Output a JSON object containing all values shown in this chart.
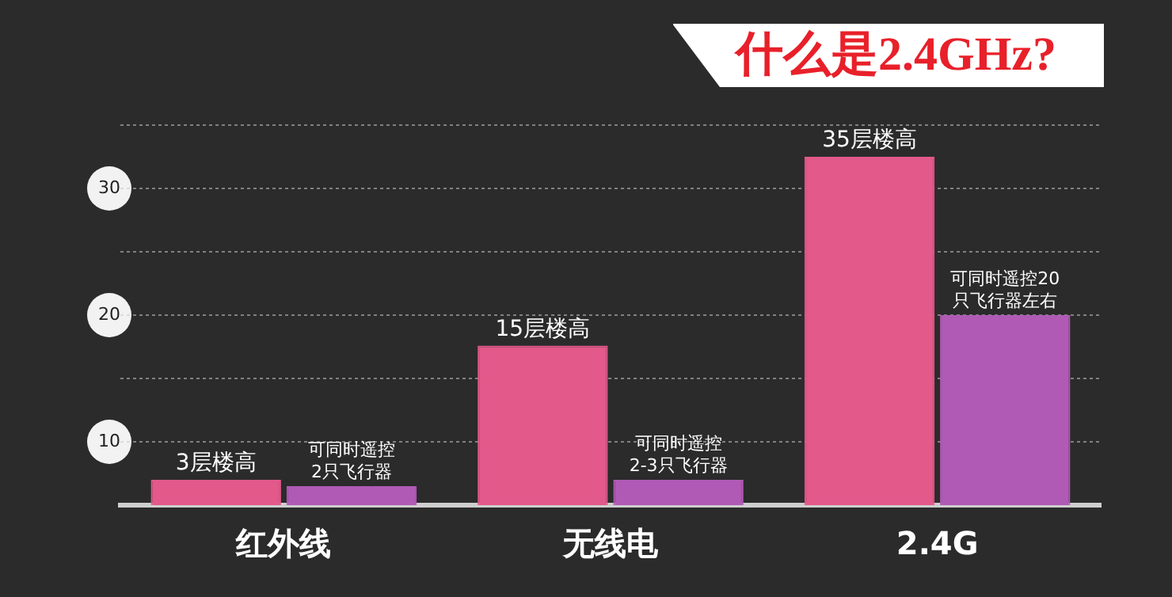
{
  "chart_data": {
    "type": "bar",
    "title": "什么是2.4GHz?",
    "categories": [
      "红外线",
      "无线电",
      "2.4G"
    ],
    "series": [
      {
        "color": "#e2598a",
        "values": [
          7.0,
          17.6,
          32.5
        ]
      },
      {
        "color": "#b05ab5",
        "values": [
          6.5,
          7.0,
          20
        ]
      }
    ],
    "annotations": [
      {
        "text": "3层楼高",
        "x": "红外线",
        "y": 7.0
      },
      {
        "text": "15层楼高",
        "x": "无线电",
        "y": 17.6
      },
      {
        "text": "35层楼高",
        "x": "2.4G",
        "y": 32.5
      },
      {
        "text": "可同时遥控\n2只飞行器",
        "x": "红外线",
        "y": 6.5
      },
      {
        "text": "可同时遥控\n2-3只飞行器",
        "x": "无线电",
        "y": 7.0
      },
      {
        "text": "可同时遥控20\n只飞行器左右",
        "x": "2.4G",
        "y": 20
      }
    ],
    "ylim": [
      5,
      35
    ],
    "yticks": [
      {
        "value": 10,
        "label": "10"
      },
      {
        "value": 15,
        "label": null
      },
      {
        "value": 20,
        "label": "20"
      },
      {
        "value": 25,
        "label": null
      },
      {
        "value": 30,
        "label": "30"
      },
      {
        "value": 35,
        "label": null
      }
    ],
    "grid": "y"
  }
}
